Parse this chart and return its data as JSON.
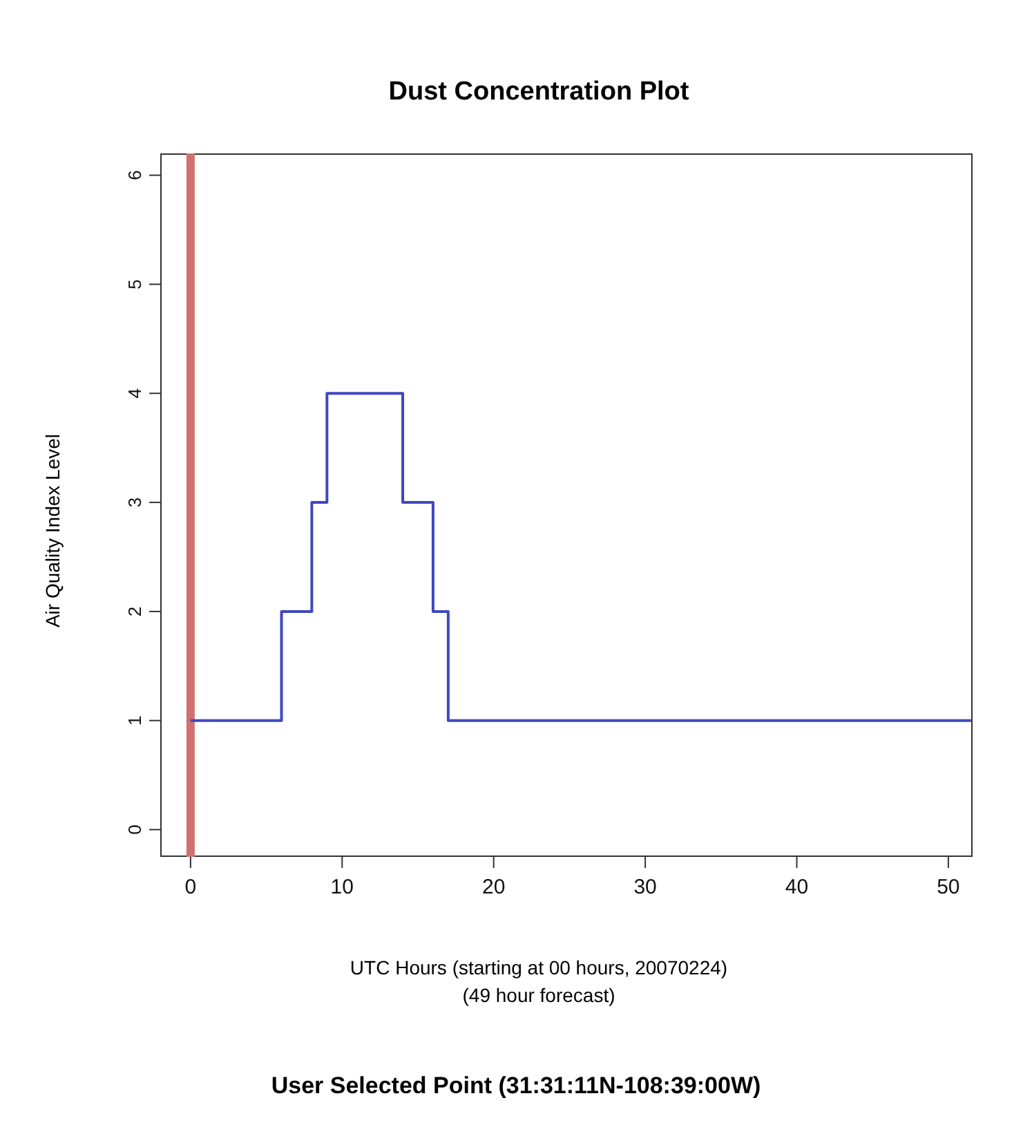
{
  "chart_data": {
    "type": "step",
    "title": "Dust Concentration Plot",
    "xlabel": "UTC Hours (starting at 00 hours, 20070224)\n(49 hour forecast)",
    "ylabel": "Air Quality Index Level",
    "x": [
      0,
      6,
      8,
      9,
      14,
      16,
      17,
      51.5
    ],
    "series": [
      {
        "color": "#3f48c0",
        "values": [
          1,
          2,
          3,
          4,
          3,
          2,
          1,
          1
        ]
      }
    ],
    "xlim": [
      -2,
      51.6
    ],
    "xticks": [
      0,
      10,
      20,
      30,
      40,
      50
    ],
    "ylim": [
      -0.25,
      6.2
    ],
    "yticks": [
      0,
      1,
      2,
      3,
      4,
      5,
      6
    ],
    "ref_lines": [
      {
        "axis": "x",
        "value": 0,
        "color": "#d07070"
      }
    ],
    "grid": false,
    "annotations": [
      "User Selected Point (31:31:11N-108:39:00W)"
    ]
  }
}
